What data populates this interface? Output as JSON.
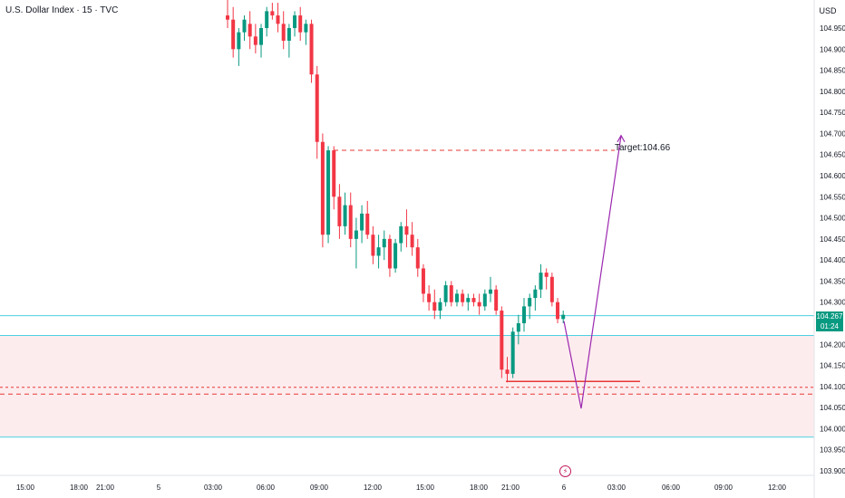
{
  "header": {
    "symbol_title": "U.S. Dollar Index · 15 · TVC",
    "currency": "USD"
  },
  "price_axis": {
    "labels": [
      "104.950",
      "104.900",
      "104.850",
      "104.800",
      "104.750",
      "104.700",
      "104.650",
      "104.600",
      "104.550",
      "104.500",
      "104.450",
      "104.400",
      "104.350",
      "104.300",
      "104.200",
      "104.150",
      "104.100",
      "104.050",
      "104.000",
      "103.950",
      "103.900"
    ]
  },
  "time_axis": {
    "labels": [
      "15:00",
      "18:00",
      "21:00",
      "5",
      "03:00",
      "06:00",
      "09:00",
      "12:00",
      "15:00",
      "18:00",
      "21:00",
      "6",
      "03:00",
      "06:00",
      "09:00",
      "12:00"
    ]
  },
  "current_price": {
    "value": "104.267",
    "countdown": "01:24"
  },
  "annotations": {
    "target_label": "Target:104.66",
    "target_price": 104.66,
    "zone_top": 104.221,
    "zone_bottom": 103.98,
    "upper_line": 104.268,
    "support_line": 104.112,
    "dashed_low_1": 104.098,
    "dashed_low_2": 104.082,
    "projection_path": [
      {
        "time": "6 00:00",
        "price": 104.255
      },
      {
        "time": "6 02:15",
        "price": 104.048
      },
      {
        "time": "6 03:30",
        "price": 104.695
      }
    ]
  },
  "event_icon": "lightning-icon",
  "colors": {
    "up": "#089981",
    "down": "#f23645",
    "projection": "#9c27b0",
    "zone_fill": "#fdecee",
    "cyan_line": "#4dd0e1",
    "target_line": "#e53935"
  },
  "chart_data": {
    "type": "candlestick",
    "title": "U.S. Dollar Index · 15 · TVC",
    "x_timeframe": "15",
    "ylim": [
      103.88,
      105.0
    ],
    "candles": [
      {
        "o": 104.98,
        "h": 105.02,
        "l": 104.95,
        "c": 104.97
      },
      {
        "o": 104.97,
        "h": 105.0,
        "l": 104.88,
        "c": 104.9
      },
      {
        "o": 104.9,
        "h": 104.95,
        "l": 104.86,
        "c": 104.94
      },
      {
        "o": 104.94,
        "h": 104.98,
        "l": 104.92,
        "c": 104.97
      },
      {
        "o": 104.96,
        "h": 104.99,
        "l": 104.9,
        "c": 104.93
      },
      {
        "o": 104.93,
        "h": 104.96,
        "l": 104.89,
        "c": 104.91
      },
      {
        "o": 104.91,
        "h": 104.96,
        "l": 104.88,
        "c": 104.95
      },
      {
        "o": 104.95,
        "h": 105.0,
        "l": 104.93,
        "c": 104.99
      },
      {
        "o": 104.99,
        "h": 105.01,
        "l": 104.97,
        "c": 104.98
      },
      {
        "o": 104.98,
        "h": 105.01,
        "l": 104.94,
        "c": 104.96
      },
      {
        "o": 104.96,
        "h": 104.99,
        "l": 104.9,
        "c": 104.92
      },
      {
        "o": 104.92,
        "h": 104.96,
        "l": 104.88,
        "c": 104.95
      },
      {
        "o": 104.95,
        "h": 104.99,
        "l": 104.93,
        "c": 104.98
      },
      {
        "o": 104.98,
        "h": 105.0,
        "l": 104.92,
        "c": 104.94
      },
      {
        "o": 104.94,
        "h": 104.97,
        "l": 104.91,
        "c": 104.96
      },
      {
        "o": 104.96,
        "h": 104.97,
        "l": 104.82,
        "c": 104.84
      },
      {
        "o": 104.84,
        "h": 104.86,
        "l": 104.64,
        "c": 104.68
      },
      {
        "o": 104.68,
        "h": 104.7,
        "l": 104.43,
        "c": 104.46
      },
      {
        "o": 104.46,
        "h": 104.67,
        "l": 104.44,
        "c": 104.66
      },
      {
        "o": 104.66,
        "h": 104.67,
        "l": 104.52,
        "c": 104.55
      },
      {
        "o": 104.55,
        "h": 104.58,
        "l": 104.45,
        "c": 104.48
      },
      {
        "o": 104.48,
        "h": 104.56,
        "l": 104.46,
        "c": 104.53
      },
      {
        "o": 104.53,
        "h": 104.56,
        "l": 104.43,
        "c": 104.45
      },
      {
        "o": 104.45,
        "h": 104.5,
        "l": 104.38,
        "c": 104.47
      },
      {
        "o": 104.47,
        "h": 104.53,
        "l": 104.44,
        "c": 104.51
      },
      {
        "o": 104.51,
        "h": 104.54,
        "l": 104.45,
        "c": 104.46
      },
      {
        "o": 104.46,
        "h": 104.48,
        "l": 104.39,
        "c": 104.41
      },
      {
        "o": 104.41,
        "h": 104.46,
        "l": 104.38,
        "c": 104.43
      },
      {
        "o": 104.43,
        "h": 104.47,
        "l": 104.4,
        "c": 104.45
      },
      {
        "o": 104.45,
        "h": 104.46,
        "l": 104.36,
        "c": 104.38
      },
      {
        "o": 104.38,
        "h": 104.45,
        "l": 104.37,
        "c": 104.44
      },
      {
        "o": 104.44,
        "h": 104.49,
        "l": 104.42,
        "c": 104.48
      },
      {
        "o": 104.48,
        "h": 104.52,
        "l": 104.43,
        "c": 104.46
      },
      {
        "o": 104.46,
        "h": 104.49,
        "l": 104.41,
        "c": 104.43
      },
      {
        "o": 104.43,
        "h": 104.45,
        "l": 104.36,
        "c": 104.38
      },
      {
        "o": 104.38,
        "h": 104.39,
        "l": 104.3,
        "c": 104.32
      },
      {
        "o": 104.32,
        "h": 104.34,
        "l": 104.28,
        "c": 104.3
      },
      {
        "o": 104.3,
        "h": 104.33,
        "l": 104.26,
        "c": 104.28
      },
      {
        "o": 104.28,
        "h": 104.31,
        "l": 104.26,
        "c": 104.3
      },
      {
        "o": 104.3,
        "h": 104.35,
        "l": 104.29,
        "c": 104.34
      },
      {
        "o": 104.34,
        "h": 104.35,
        "l": 104.29,
        "c": 104.3
      },
      {
        "o": 104.3,
        "h": 104.33,
        "l": 104.29,
        "c": 104.32
      },
      {
        "o": 104.32,
        "h": 104.33,
        "l": 104.29,
        "c": 104.3
      },
      {
        "o": 104.3,
        "h": 104.32,
        "l": 104.28,
        "c": 104.31
      },
      {
        "o": 104.31,
        "h": 104.32,
        "l": 104.29,
        "c": 104.3
      },
      {
        "o": 104.3,
        "h": 104.32,
        "l": 104.27,
        "c": 104.29
      },
      {
        "o": 104.29,
        "h": 104.33,
        "l": 104.28,
        "c": 104.32
      },
      {
        "o": 104.32,
        "h": 104.36,
        "l": 104.3,
        "c": 104.33
      },
      {
        "o": 104.33,
        "h": 104.34,
        "l": 104.27,
        "c": 104.28
      },
      {
        "o": 104.28,
        "h": 104.29,
        "l": 104.12,
        "c": 104.14
      },
      {
        "o": 104.14,
        "h": 104.17,
        "l": 104.11,
        "c": 104.13
      },
      {
        "o": 104.13,
        "h": 104.24,
        "l": 104.12,
        "c": 104.23
      },
      {
        "o": 104.23,
        "h": 104.27,
        "l": 104.2,
        "c": 104.25
      },
      {
        "o": 104.25,
        "h": 104.31,
        "l": 104.23,
        "c": 104.29
      },
      {
        "o": 104.29,
        "h": 104.32,
        "l": 104.26,
        "c": 104.31
      },
      {
        "o": 104.31,
        "h": 104.34,
        "l": 104.28,
        "c": 104.33
      },
      {
        "o": 104.33,
        "h": 104.39,
        "l": 104.31,
        "c": 104.37
      },
      {
        "o": 104.37,
        "h": 104.38,
        "l": 104.33,
        "c": 104.36
      },
      {
        "o": 104.36,
        "h": 104.37,
        "l": 104.29,
        "c": 104.3
      },
      {
        "o": 104.3,
        "h": 104.31,
        "l": 104.25,
        "c": 104.26
      },
      {
        "o": 104.26,
        "h": 104.28,
        "l": 104.25,
        "c": 104.27
      }
    ]
  }
}
